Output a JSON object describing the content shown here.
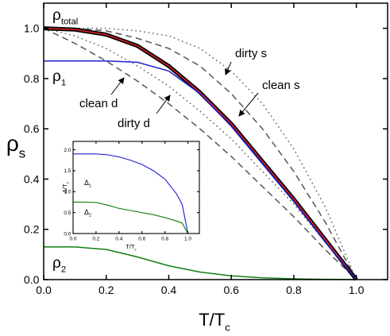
{
  "chart_data": [
    {
      "type": "line",
      "x_label": {
        "text": "T/T",
        "sub": "c"
      },
      "y_label": {
        "text": "ρ",
        "sub": "s"
      },
      "xlim": [
        0,
        1.1
      ],
      "ylim": [
        0,
        1.1
      ],
      "xticks": [
        {
          "value": 0,
          "label": "0.0"
        },
        {
          "value": 0.2,
          "label": "0.2"
        },
        {
          "value": 0.4,
          "label": "0.4"
        },
        {
          "value": 0.6,
          "label": "0.6"
        },
        {
          "value": 0.8,
          "label": "0.8"
        },
        {
          "value": 1,
          "label": "1.0"
        }
      ],
      "yticks": [
        {
          "value": 0,
          "label": "0.0"
        },
        {
          "value": 0.2,
          "label": "0.2"
        },
        {
          "value": 0.4,
          "label": "0.4"
        },
        {
          "value": 0.6,
          "label": "0.6"
        },
        {
          "value": 0.8,
          "label": "0.8"
        },
        {
          "value": 1,
          "label": "1.0"
        }
      ],
      "x": [
        0,
        0.1,
        0.2,
        0.3,
        0.4,
        0.5,
        0.6,
        0.7,
        0.8,
        0.9,
        1.0
      ],
      "series": [
        {
          "color": "#555555",
          "style": "dotted",
          "values": [
            1,
            1,
            1,
            0.99,
            0.97,
            0.92,
            0.83,
            0.7,
            0.52,
            0.29,
            0
          ]
        },
        {
          "color": "#555555",
          "style": "dashed",
          "values": [
            1,
            1,
            0.99,
            0.96,
            0.92,
            0.85,
            0.74,
            0.6,
            0.43,
            0.23,
            0
          ]
        },
        {
          "color": "#555555",
          "style": "dotted",
          "values": [
            1,
            0.97,
            0.92,
            0.85,
            0.77,
            0.67,
            0.56,
            0.43,
            0.3,
            0.15,
            0
          ]
        },
        {
          "color": "#555555",
          "style": "dashed",
          "values": [
            1,
            0.94,
            0.87,
            0.79,
            0.7,
            0.6,
            0.49,
            0.37,
            0.25,
            0.12,
            0
          ]
        },
        {
          "color": "#000000",
          "style": "thick",
          "values": [
            1,
            0.995,
            0.975,
            0.93,
            0.85,
            0.745,
            0.62,
            0.47,
            0.32,
            0.16,
            0
          ]
        },
        {
          "color": "#e8202a",
          "style": "solid",
          "values": [
            1,
            0.995,
            0.975,
            0.93,
            0.85,
            0.745,
            0.62,
            0.47,
            0.32,
            0.16,
            0
          ]
        },
        {
          "color": "#1f1fd0",
          "style": "solid",
          "values": [
            0.87,
            0.87,
            0.87,
            0.865,
            0.83,
            0.74,
            0.61,
            0.46,
            0.31,
            0.15,
            0
          ]
        },
        {
          "color": "#128012",
          "style": "solid",
          "values": [
            0.13,
            0.13,
            0.12,
            0.09,
            0.055,
            0.03,
            0.015,
            0.007,
            0.003,
            0.001,
            0
          ]
        }
      ],
      "annotations": [
        {
          "text": "ρ",
          "sub": "total"
        },
        {
          "text": "ρ",
          "sub": "1"
        },
        {
          "text": "ρ",
          "sub": "2"
        },
        {
          "text": "clean d"
        },
        {
          "text": "dirty d"
        },
        {
          "text": "dirty s"
        },
        {
          "text": "clean s"
        }
      ]
    },
    {
      "type": "line",
      "x_label": {
        "text": "T/T",
        "sub": "c"
      },
      "y_label": {
        "text": "Δ/T",
        "sub": "c"
      },
      "xlim": [
        0,
        1.1
      ],
      "ylim": [
        0,
        2.2
      ],
      "xticks": [
        {
          "value": 0,
          "label": "0.0"
        },
        {
          "value": 0.2,
          "label": "0.2"
        },
        {
          "value": 0.4,
          "label": "0.4"
        },
        {
          "value": 0.6,
          "label": "0.6"
        },
        {
          "value": 0.8,
          "label": "0.8"
        },
        {
          "value": 1,
          "label": "1.0"
        }
      ],
      "yticks": [
        {
          "value": 0,
          "label": "0.0"
        },
        {
          "value": 0.5,
          "label": "0.5"
        },
        {
          "value": 1,
          "label": "1.0"
        },
        {
          "value": 1.5,
          "label": "1.5"
        },
        {
          "value": 2,
          "label": "2.0"
        }
      ],
      "x": [
        0,
        0.1,
        0.2,
        0.3,
        0.4,
        0.5,
        0.6,
        0.7,
        0.8,
        0.9,
        0.95,
        1.0
      ],
      "series": [
        {
          "color": "#1f1fd0",
          "style": "solid",
          "values": [
            1.9,
            1.9,
            1.9,
            1.88,
            1.83,
            1.75,
            1.65,
            1.5,
            1.3,
            0.95,
            0.7,
            0
          ]
        },
        {
          "color": "#128012",
          "style": "solid",
          "values": [
            0.75,
            0.75,
            0.74,
            0.68,
            0.6,
            0.55,
            0.5,
            0.45,
            0.38,
            0.3,
            0.25,
            0
          ]
        }
      ],
      "annotations": [
        {
          "text": "Δ",
          "sub": "1"
        },
        {
          "text": "Δ",
          "sub": "2"
        }
      ]
    }
  ]
}
